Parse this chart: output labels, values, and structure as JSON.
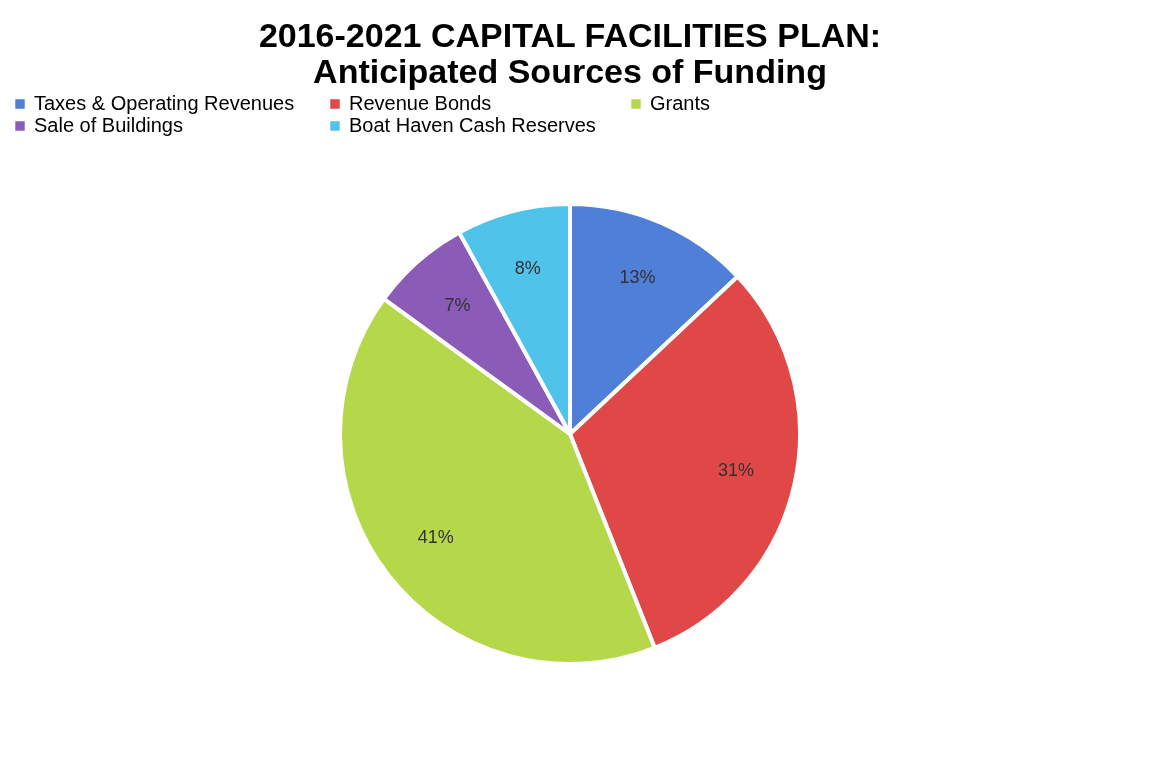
{
  "chart_data": {
    "type": "pie",
    "title": [
      "2016-2021 CAPITAL FACILITIES PLAN:",
      "Anticipated Sources of Funding"
    ],
    "categories": [
      "Taxes & Operating Revenues",
      "Revenue Bonds",
      "Grants",
      "Sale of Buildings",
      "Boat Haven Cash Reserves"
    ],
    "values": [
      13,
      31,
      41,
      7,
      8
    ],
    "value_labels": [
      "13%",
      "31%",
      "41%",
      "7%",
      "8%"
    ],
    "colors": [
      "#4f7fd6",
      "#e04848",
      "#b5d84a",
      "#8a5cb8",
      "#4fc3ea"
    ],
    "legend": "top"
  }
}
